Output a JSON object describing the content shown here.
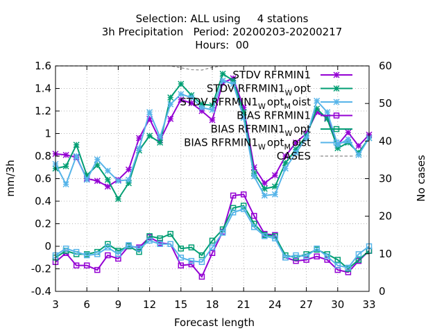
{
  "chart_data": {
    "type": "line",
    "title_lines": [
      "Selection: ALL using     4 stations",
      "3h Precipitation   Period: 20200203-20200217",
      "Hours:  00"
    ],
    "xlabel": "Forecast length",
    "ylabel": "mm/3h",
    "y2label": "No cases",
    "xlim": [
      3,
      33
    ],
    "ylim": [
      -0.4,
      1.6
    ],
    "y2lim": [
      0,
      60
    ],
    "x_ticks": [
      3,
      6,
      9,
      12,
      15,
      18,
      21,
      24,
      27,
      30,
      33
    ],
    "y_ticks": [
      -0.4,
      -0.2,
      0,
      0.2,
      0.4,
      0.6,
      0.8,
      1,
      1.2,
      1.4,
      1.6
    ],
    "y_tick_labels": [
      "-0.4",
      "-0.2",
      "0",
      "0.2",
      "0.4",
      "0.6",
      "0.8",
      "1",
      "1.2",
      "1.4",
      "1.6"
    ],
    "y2_ticks": [
      0,
      10,
      20,
      30,
      40,
      50,
      60
    ],
    "y2_tick_labels": [
      "0",
      "10",
      "20",
      "30",
      "40",
      "50",
      "60"
    ],
    "grid": true,
    "legend_position": "top-right",
    "x": [
      3,
      4,
      5,
      6,
      7,
      8,
      9,
      10,
      11,
      12,
      13,
      14,
      15,
      16,
      17,
      18,
      19,
      20,
      21,
      22,
      23,
      24,
      25,
      26,
      27,
      28,
      29,
      30,
      31,
      32,
      33
    ],
    "series": [
      {
        "legend_main": "STDV RFRMIN1",
        "legend_subs": [],
        "color": "#9400d3",
        "marker": "x",
        "axis": "y",
        "values": [
          0.82,
          0.81,
          0.79,
          0.6,
          0.58,
          0.53,
          0.59,
          0.68,
          0.96,
          1.13,
          0.94,
          1.13,
          1.3,
          1.27,
          1.2,
          1.12,
          1.45,
          1.49,
          1.23,
          0.7,
          0.56,
          0.63,
          0.8,
          0.92,
          1.0,
          1.19,
          1.14,
          0.9,
          1.01,
          0.89,
          0.99
        ]
      },
      {
        "legend_main": "STDV RFRMIN1",
        "legend_subs": [
          [
            "W",
            22
          ],
          [
            "opt",
            0
          ]
        ],
        "color": "#009e73",
        "marker": "x",
        "axis": "y",
        "values": [
          0.69,
          0.71,
          0.9,
          0.63,
          0.72,
          0.59,
          0.42,
          0.56,
          0.85,
          0.98,
          0.92,
          1.32,
          1.44,
          1.34,
          1.26,
          1.25,
          1.53,
          1.47,
          1.19,
          0.65,
          0.51,
          0.53,
          0.74,
          0.86,
          0.98,
          1.22,
          1.13,
          0.87,
          0.92,
          0.83,
          0.96
        ]
      },
      {
        "legend_main": "STDV RFRMIN1",
        "legend_subs": [
          [
            "W",
            22
          ],
          [
            "opt",
            0
          ],
          [
            "M",
            22
          ],
          [
            "oist",
            0
          ]
        ],
        "color": "#56b4e9",
        "marker": "x",
        "axis": "y",
        "values": [
          0.73,
          0.55,
          0.8,
          0.59,
          0.77,
          0.67,
          0.58,
          0.59,
          0.87,
          1.19,
          0.97,
          1.26,
          1.35,
          1.32,
          1.23,
          1.21,
          1.47,
          1.44,
          1.14,
          0.62,
          0.45,
          0.46,
          0.69,
          0.83,
          0.96,
          1.29,
          1.19,
          0.9,
          0.95,
          0.81,
          0.96
        ]
      },
      {
        "legend_main": "BIAS RFRMIN1",
        "legend_subs": [],
        "color": "#9400d3",
        "marker": "square",
        "axis": "y",
        "values": [
          -0.14,
          -0.06,
          -0.17,
          -0.17,
          -0.21,
          -0.08,
          -0.11,
          0.0,
          -0.01,
          0.08,
          0.03,
          0.02,
          -0.17,
          -0.16,
          -0.27,
          -0.06,
          0.13,
          0.45,
          0.46,
          0.27,
          0.11,
          0.1,
          -0.1,
          -0.13,
          -0.12,
          -0.09,
          -0.12,
          -0.21,
          -0.23,
          -0.13,
          -0.04
        ]
      },
      {
        "legend_main": "BIAS RFRMIN1",
        "legend_subs": [
          [
            "W",
            22
          ],
          [
            "opt",
            0
          ]
        ],
        "color": "#009e73",
        "marker": "square",
        "axis": "y",
        "values": [
          -0.1,
          -0.04,
          -0.07,
          -0.07,
          -0.05,
          0.02,
          -0.04,
          0.0,
          -0.05,
          0.09,
          0.07,
          0.11,
          -0.02,
          -0.01,
          -0.08,
          0.05,
          0.15,
          0.34,
          0.36,
          0.2,
          0.1,
          0.09,
          -0.08,
          -0.1,
          -0.07,
          -0.03,
          -0.07,
          -0.12,
          -0.2,
          -0.12,
          -0.04
        ]
      },
      {
        "legend_main": "BIAS RFRMIN1",
        "legend_subs": [
          [
            "W",
            22
          ],
          [
            "opt",
            0
          ],
          [
            "M",
            22
          ],
          [
            "oist",
            0
          ]
        ],
        "color": "#56b4e9",
        "marker": "square",
        "axis": "y",
        "values": [
          -0.08,
          -0.02,
          -0.05,
          -0.08,
          -0.07,
          -0.01,
          -0.07,
          0.01,
          -0.02,
          0.05,
          0.02,
          0.02,
          -0.1,
          -0.13,
          -0.14,
          -0.01,
          0.12,
          0.3,
          0.33,
          0.17,
          0.09,
          0.07,
          -0.1,
          -0.08,
          -0.09,
          -0.02,
          -0.09,
          -0.17,
          -0.19,
          -0.07,
          0.0
        ]
      },
      {
        "legend_main": "CASES",
        "legend_subs": [],
        "color": "#888888",
        "marker": "none",
        "dashed": true,
        "axis": "y2",
        "values": [
          60,
          60,
          60,
          60,
          60,
          60,
          60,
          60,
          60,
          60,
          60,
          60,
          59.5,
          59.0,
          58.9,
          59.6,
          60,
          60,
          60,
          60,
          60,
          60,
          60,
          60,
          60,
          60,
          60,
          60,
          60,
          60,
          60
        ]
      }
    ]
  }
}
